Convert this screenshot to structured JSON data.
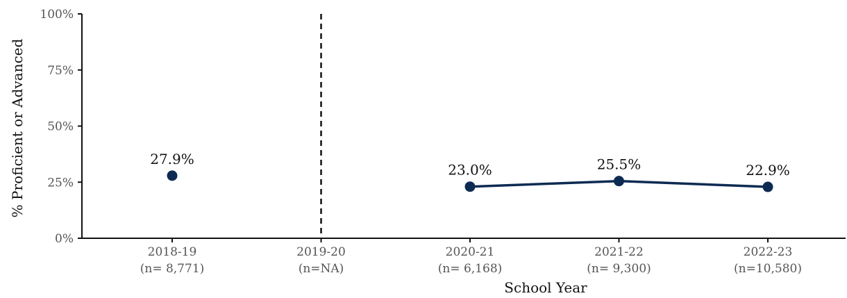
{
  "chart_data": {
    "type": "line",
    "xlabel": "School Year",
    "ylabel": "% Proficient or Advanced",
    "ylim": [
      0,
      100
    ],
    "y_ticks": [
      "0%",
      "25%",
      "50%",
      "75%",
      "100%"
    ],
    "y_tick_values": [
      0,
      25,
      50,
      75,
      100
    ],
    "categories": [
      {
        "year": "2018-19",
        "n": "(n= 8,771)"
      },
      {
        "year": "2019-20",
        "n": "(n=NA)"
      },
      {
        "year": "2020-21",
        "n": "(n= 6,168)"
      },
      {
        "year": "2021-22",
        "n": "(n= 9,300)"
      },
      {
        "year": "2022-23",
        "n": "(n=10,580)"
      }
    ],
    "series": [
      {
        "values": [
          27.9,
          null,
          23.0,
          25.5,
          22.9
        ],
        "labels": [
          "27.9%",
          "",
          "23.0%",
          "25.5%",
          "22.9%"
        ],
        "color": "#0d2b52"
      }
    ],
    "vertical_reference_line": {
      "category": "2019-20",
      "style": "dashed",
      "color": "#111111"
    },
    "grid": false,
    "legend": "none"
  }
}
